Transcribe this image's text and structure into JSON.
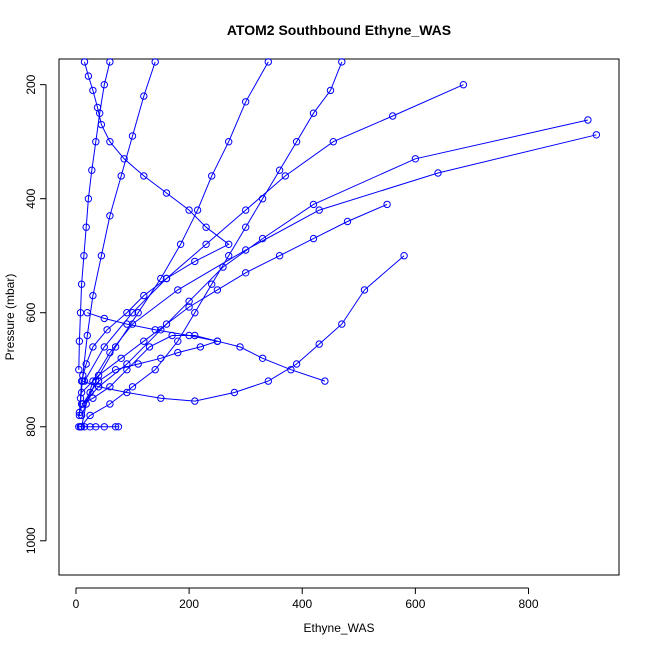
{
  "chart_data": {
    "type": "scatter",
    "title": "ATOM2 Southbound Ethyne_WAS",
    "xlabel": "Ethyne_WAS",
    "ylabel": "Pressure (mbar)",
    "xlim": [
      -30,
      960
    ],
    "ylim": [
      1060,
      155
    ],
    "y_reversed": true,
    "x_ticks": [
      0,
      200,
      400,
      600,
      800
    ],
    "y_ticks": [
      200,
      400,
      600,
      800,
      1000
    ],
    "grid": false,
    "legend": "none",
    "series_color": "#0000ff",
    "marker": "open-circle",
    "connected": true,
    "series": [
      {
        "x": [
          15,
          22,
          30,
          38,
          45,
          60,
          85,
          120,
          160,
          200,
          230,
          270,
          210,
          160,
          120,
          90,
          55,
          30,
          18,
          10,
          8,
          6,
          12,
          25,
          40,
          70,
          110,
          150,
          180,
          220,
          250,
          200,
          140,
          90,
          50,
          20
        ],
        "y": [
          160,
          185,
          210,
          240,
          270,
          300,
          330,
          360,
          390,
          420,
          450,
          480,
          510,
          540,
          570,
          600,
          630,
          660,
          690,
          720,
          750,
          775,
          760,
          740,
          720,
          700,
          690,
          680,
          670,
          660,
          650,
          640,
          630,
          620,
          610,
          600
        ]
      },
      {
        "x": [
          920,
          640,
          430,
          300,
          180,
          100,
          60,
          30,
          18,
          10
        ],
        "y": [
          288,
          355,
          420,
          490,
          560,
          620,
          670,
          720,
          760,
          800
        ]
      },
      {
        "x": [
          905,
          600,
          420,
          330,
          260,
          200,
          150,
          90,
          40,
          12
        ],
        "y": [
          262,
          330,
          410,
          470,
          520,
          580,
          630,
          690,
          730,
          760
        ]
      },
      {
        "x": [
          685,
          560,
          455,
          370,
          300,
          230,
          160,
          100,
          50,
          15
        ],
        "y": [
          200,
          255,
          300,
          360,
          420,
          480,
          540,
          600,
          660,
          720
        ]
      },
      {
        "x": [
          580,
          510,
          470,
          430,
          390,
          340,
          280,
          210,
          150,
          90,
          40,
          12
        ],
        "y": [
          500,
          560,
          620,
          655,
          690,
          720,
          740,
          755,
          750,
          740,
          730,
          720
        ]
      },
      {
        "x": [
          440,
          380,
          330,
          290,
          250,
          210,
          170,
          130,
          90,
          60,
          30,
          10
        ],
        "y": [
          720,
          700,
          680,
          660,
          650,
          640,
          640,
          660,
          700,
          730,
          750,
          760
        ]
      },
      {
        "x": [
          470,
          450,
          420,
          390,
          360,
          330,
          300,
          270,
          240,
          210,
          180,
          140,
          100,
          60,
          25,
          8
        ],
        "y": [
          160,
          210,
          250,
          300,
          350,
          400,
          450,
          500,
          550,
          600,
          650,
          700,
          730,
          760,
          780,
          800
        ]
      },
      {
        "x": [
          5,
          8,
          15,
          25,
          35,
          50,
          70,
          75
        ],
        "y": [
          800,
          800,
          800,
          800,
          800,
          800,
          800,
          800
        ]
      },
      {
        "x": [
          550,
          480,
          420,
          360,
          300,
          250,
          200,
          160,
          120,
          80,
          40,
          10
        ],
        "y": [
          410,
          440,
          470,
          500,
          530,
          560,
          590,
          620,
          650,
          680,
          710,
          740
        ]
      },
      {
        "x": [
          340,
          300,
          270,
          240,
          215,
          185,
          150,
          110,
          70,
          35,
          10
        ],
        "y": [
          160,
          230,
          300,
          360,
          420,
          480,
          540,
          600,
          660,
          720,
          780
        ]
      },
      {
        "x": [
          140,
          120,
          100,
          80,
          60,
          45,
          30,
          20,
          12,
          6
        ],
        "y": [
          160,
          220,
          290,
          360,
          430,
          500,
          570,
          640,
          710,
          780
        ]
      },
      {
        "x": [
          60,
          50,
          42,
          35,
          28,
          22,
          18,
          14,
          10,
          8,
          6,
          5
        ],
        "y": [
          160,
          200,
          250,
          300,
          350,
          400,
          450,
          500,
          550,
          600,
          650,
          700
        ]
      }
    ]
  }
}
